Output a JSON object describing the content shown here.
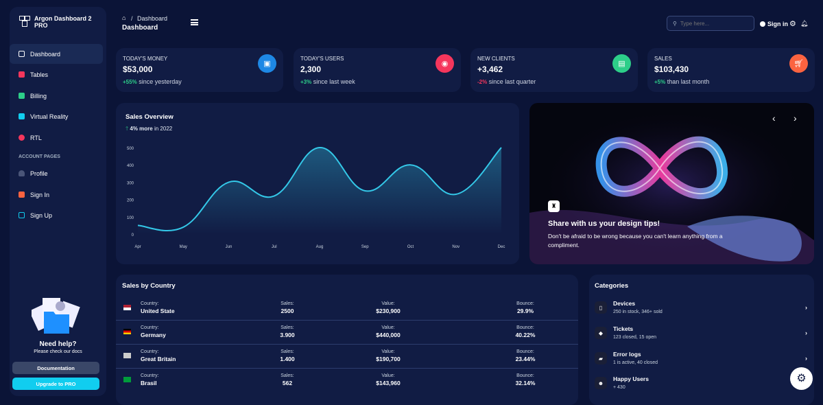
{
  "brand": {
    "name": "Argon Dashboard 2 PRO"
  },
  "sidebar": {
    "items": [
      {
        "label": "Dashboard",
        "icon": "tv-icon",
        "color": "#ffffff"
      },
      {
        "label": "Tables",
        "icon": "calendar-icon",
        "color": "#f5365c"
      },
      {
        "label": "Billing",
        "icon": "credit-card-icon",
        "color": "#2dce89"
      },
      {
        "label": "Virtual Reality",
        "icon": "app-icon",
        "color": "#11cdef"
      },
      {
        "label": "RTL",
        "icon": "world-icon",
        "color": "#f5365c"
      }
    ],
    "section": "ACCOUNT PAGES",
    "account_items": [
      {
        "label": "Profile",
        "icon": "user-icon",
        "color": "#5e72e4"
      },
      {
        "label": "Sign In",
        "icon": "signin-icon",
        "color": "#fb6340"
      },
      {
        "label": "Sign Up",
        "icon": "signup-icon",
        "color": "#11cdef"
      }
    ],
    "help_title": "Need help?",
    "help_sub": "Please check our docs",
    "doc_button": "Documentation",
    "upgrade_button": "Upgrade to PRO"
  },
  "header": {
    "breadcrumb": "Dashboard",
    "title": "Dashboard",
    "search_placeholder": "Type here...",
    "signin": "Sign in"
  },
  "stats": [
    {
      "label": "TODAY'S MONEY",
      "value": "$53,000",
      "change": "+55%",
      "suffix": " since yesterday",
      "change_color": "#2dce89",
      "icon_bg": "#1e88e5",
      "icon": "money-icon"
    },
    {
      "label": "TODAY'S USERS",
      "value": "2,300",
      "change": "+3%",
      "suffix": " since last week",
      "change_color": "#2dce89",
      "icon_bg": "#f5365c",
      "icon": "world-icon"
    },
    {
      "label": "NEW CLIENTS",
      "value": "+3,462",
      "change": "-2%",
      "suffix": " since last quarter",
      "change_color": "#f5365c",
      "icon_bg": "#2dce89",
      "icon": "paper-icon"
    },
    {
      "label": "SALES",
      "value": "$103,430",
      "change": "+5%",
      "suffix": " than last month",
      "change_color": "#2dce89",
      "icon_bg": "#fb6340",
      "icon": "cart-icon"
    }
  ],
  "sales_overview": {
    "title": "Sales Overview",
    "change": "4% more",
    "suffix": " in 2022"
  },
  "chart_data": {
    "type": "line",
    "categories": [
      "Apr",
      "May",
      "Jun",
      "Jul",
      "Aug",
      "Sep",
      "Oct",
      "Nov",
      "Dec"
    ],
    "values": [
      50,
      40,
      300,
      220,
      500,
      250,
      400,
      230,
      500
    ],
    "ylim": [
      0,
      500
    ],
    "yticks": [
      0,
      100,
      200,
      300,
      400,
      500
    ],
    "color": "#34c8e8",
    "grid": false
  },
  "carousel": {
    "title": "Share with us your design tips!",
    "text": "Don't be afraid to be wrong because you can't learn anything from a compliment."
  },
  "countries": {
    "title": "Sales by Country",
    "labels": {
      "country": "Country:",
      "sales": "Sales:",
      "value": "Value:",
      "bounce": "Bounce:"
    },
    "rows": [
      {
        "flag": "us",
        "country": "United State",
        "sales": "2500",
        "value": "$230,900",
        "bounce": "29.9%"
      },
      {
        "flag": "de",
        "country": "Germany",
        "sales": "3.900",
        "value": "$440,000",
        "bounce": "40.22%"
      },
      {
        "flag": "gb",
        "country": "Great Britain",
        "sales": "1.400",
        "value": "$190,700",
        "bounce": "23.44%"
      },
      {
        "flag": "br",
        "country": "Brasil",
        "sales": "562",
        "value": "$143,960",
        "bounce": "32.14%"
      }
    ]
  },
  "categories": {
    "title": "Categories",
    "items": [
      {
        "title": "Devices",
        "sub": "250 in stock, 346+ sold",
        "icon": "mobile-icon"
      },
      {
        "title": "Tickets",
        "sub": "123 closed, 15 open",
        "icon": "tag-icon"
      },
      {
        "title": "Error logs",
        "sub": "1 is active, 40 closed",
        "icon": "box-icon"
      },
      {
        "title": "Happy Users",
        "sub": "+ 430",
        "icon": "smile-icon"
      }
    ]
  }
}
